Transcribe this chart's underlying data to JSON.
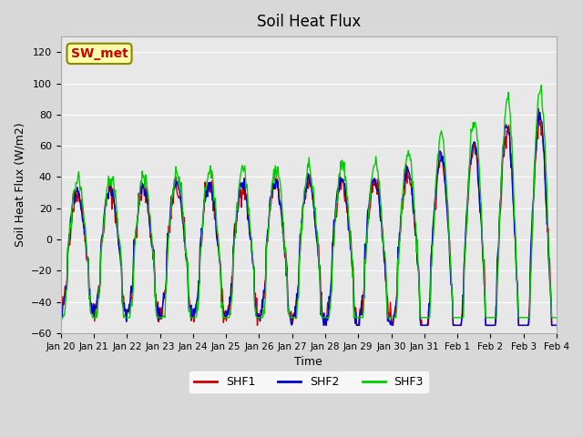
{
  "title": "Soil Heat Flux",
  "ylabel": "Soil Heat Flux (W/m2)",
  "xlabel": "Time",
  "ylim": [
    -60,
    130
  ],
  "yticks": [
    -60,
    -40,
    -20,
    0,
    20,
    40,
    60,
    80,
    100,
    120
  ],
  "background_color": "#d8d8d8",
  "plot_bg_color": "#e8e8e8",
  "line_colors": {
    "SHF1": "#cc0000",
    "SHF2": "#0000cc",
    "SHF3": "#00cc00"
  },
  "annotation_text": "SW_met",
  "n_days": 15,
  "points_per_day": 48,
  "x_tick_positions": [
    0,
    1,
    2,
    3,
    4,
    5,
    6,
    7,
    8,
    9,
    10,
    11,
    12,
    13,
    14,
    15
  ],
  "x_tick_labels": [
    "Jan 20",
    "Jan 21",
    "Jan 22",
    "Jan 23",
    "Jan 24",
    "Jan 25",
    "Jan 26",
    "Jan 27",
    "Jan 28",
    "Jan 29",
    "Jan 30",
    "Jan 31",
    "Feb 1",
    "Feb 2",
    "Feb 3",
    "Feb 4"
  ],
  "legend_entries": [
    "SHF1",
    "SHF2",
    "SHF3"
  ]
}
